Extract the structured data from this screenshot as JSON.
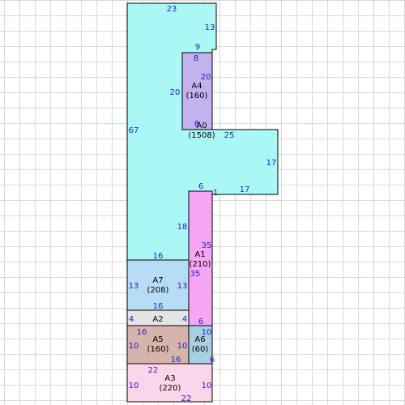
{
  "regions": [
    {
      "id": "A0",
      "name": "A0",
      "area": "(1508)",
      "color": "#aaf8f6"
    },
    {
      "id": "A4",
      "name": "A4",
      "area": "(160)",
      "color": "#c4b2ee"
    },
    {
      "id": "A1",
      "name": "A1",
      "area": "(210)",
      "color": "#f7a6f5"
    },
    {
      "id": "A7",
      "name": "A7",
      "area": "(208)",
      "color": "#b7dcf6"
    },
    {
      "id": "A2",
      "name": "A2",
      "area": "",
      "color": "#e4e4e4"
    },
    {
      "id": "A5",
      "name": "A5",
      "area": "(160)",
      "color": "#d6b3ab"
    },
    {
      "id": "A6",
      "name": "A6",
      "area": "(60)",
      "color": "#a9cfe2"
    },
    {
      "id": "A3",
      "name": "A3",
      "area": "(220)",
      "color": "#fbd6ea"
    }
  ],
  "dimensions": [
    "23",
    "13",
    "9",
    "8",
    "20",
    "20",
    "8",
    "25",
    "67",
    "17",
    "6",
    "1",
    "17",
    "18",
    "35",
    "35",
    "16",
    "13",
    "13",
    "16",
    "4",
    "4",
    "6",
    "16",
    "10",
    "10",
    "10",
    "16",
    "6",
    "22",
    "10",
    "10",
    "22"
  ]
}
